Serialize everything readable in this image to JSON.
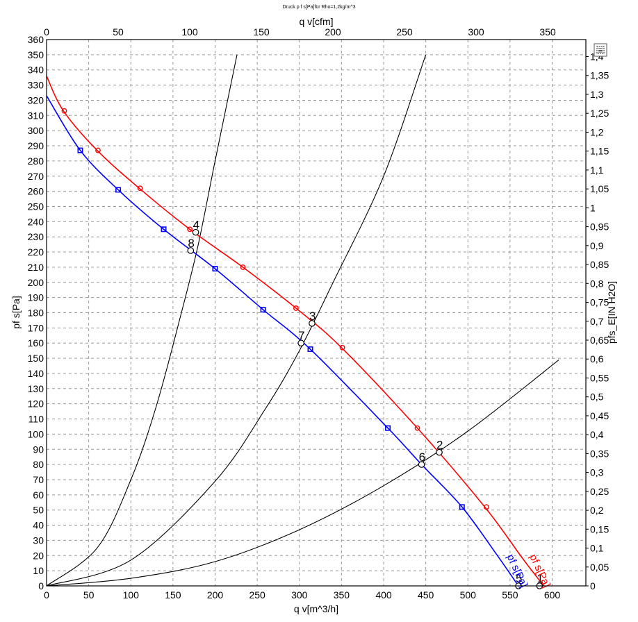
{
  "chart_data": {
    "type": "line",
    "title": "Druck p f s[Pa]für Rho=1,2kg/m^3",
    "xlabel": "q v[m^3/h]",
    "x2label": "q v[cfm]",
    "ylabel": "pf s[Pa]",
    "y2label": "pfs_E[IN H2O]",
    "xlim": [
      0,
      640
    ],
    "ylim": [
      0,
      360
    ],
    "x2lim": [
      0,
      376.7
    ],
    "y2lim": [
      0,
      1.445
    ],
    "x_ticks": [
      "0",
      "50",
      "100",
      "150",
      "200",
      "250",
      "300",
      "350",
      "400",
      "450",
      "500",
      "550",
      "600"
    ],
    "y_ticks": [
      "0",
      "10",
      "20",
      "30",
      "40",
      "50",
      "60",
      "70",
      "80",
      "90",
      "100",
      "110",
      "120",
      "130",
      "140",
      "150",
      "160",
      "170",
      "180",
      "190",
      "200",
      "210",
      "220",
      "230",
      "240",
      "250",
      "260",
      "270",
      "280",
      "290",
      "300",
      "310",
      "320",
      "330",
      "340",
      "350",
      "360"
    ],
    "x2_ticks": [
      "0",
      "50",
      "100",
      "150",
      "200",
      "250",
      "300",
      "350"
    ],
    "y2_ticks": [
      "0",
      "0,05",
      "0,1",
      "0,15",
      "0,2",
      "0,25",
      "0,3",
      "0,35",
      "0,4",
      "0,45",
      "0,5",
      "0,55",
      "0,6",
      "0,65",
      "0,7",
      "0,75",
      "0,8",
      "0,85",
      "0,9",
      "0,95",
      "1",
      "1,05",
      "1,1",
      "1,15",
      "1,2",
      "1,25",
      "1,3",
      "1,35",
      "1,4"
    ],
    "grid": true,
    "series": [
      {
        "name": "pf s[Pa]",
        "color": "#ff0000",
        "marker": "circle",
        "x": [
          0,
          20,
          60,
          110,
          170,
          233,
          296,
          350,
          440,
          520,
          565,
          590
        ],
        "y": [
          336,
          313,
          287,
          262,
          235,
          210,
          183,
          157,
          104,
          52,
          18,
          0
        ],
        "markers_x": [
          21,
          61,
          111,
          170,
          233,
          296,
          351,
          440,
          522
        ],
        "markers_y": [
          313,
          287,
          262,
          235,
          210,
          183,
          157,
          104,
          52
        ]
      },
      {
        "name": "pf s[Pa]",
        "color": "#0000ff",
        "marker": "square",
        "x": [
          0,
          40,
          85,
          139,
          200,
          257,
          313,
          405,
          445,
          493,
          535,
          560
        ],
        "y": [
          323,
          287,
          261,
          235,
          209,
          182,
          156,
          104,
          80,
          52,
          20,
          0
        ],
        "markers_x": [
          40,
          85,
          139,
          200,
          257,
          313,
          405,
          493
        ],
        "markers_y": [
          287,
          261,
          235,
          209,
          182,
          156,
          104,
          52
        ]
      }
    ],
    "system_curves": [
      {
        "x": [
          0,
          60,
          100,
          130,
          160,
          180,
          200,
          226
        ],
        "y": [
          0,
          25,
          70,
          118,
          180,
          225,
          280,
          350
        ]
      },
      {
        "x": [
          0,
          100,
          200,
          260,
          300,
          340,
          400,
          450
        ],
        "y": [
          0,
          17,
          69,
          117,
          155,
          200,
          270,
          350
        ]
      },
      {
        "x": [
          0,
          100,
          200,
          300,
          400,
          500,
          608
        ],
        "y": [
          0,
          5,
          16,
          37,
          66,
          102,
          149
        ]
      }
    ],
    "operating_points": [
      {
        "label": "1",
        "x": 585,
        "y": 0
      },
      {
        "label": "2",
        "x": 466,
        "y": 88
      },
      {
        "label": "3",
        "x": 315,
        "y": 173
      },
      {
        "label": "4",
        "x": 177,
        "y": 233
      },
      {
        "label": "5",
        "x": 560,
        "y": 0
      },
      {
        "label": "6",
        "x": 445,
        "y": 80
      },
      {
        "label": "7",
        "x": 302,
        "y": 160
      },
      {
        "label": "8",
        "x": 171,
        "y": 221
      }
    ],
    "curve_labels": [
      {
        "text": "pf s[Pa]",
        "color": "#ff0000",
        "x": 582,
        "y": 9
      },
      {
        "text": "pf s[Pa]",
        "color": "#0000ff",
        "x": 555,
        "y": 9
      }
    ]
  },
  "toolbar": {
    "corner_icon": "select-icon"
  }
}
